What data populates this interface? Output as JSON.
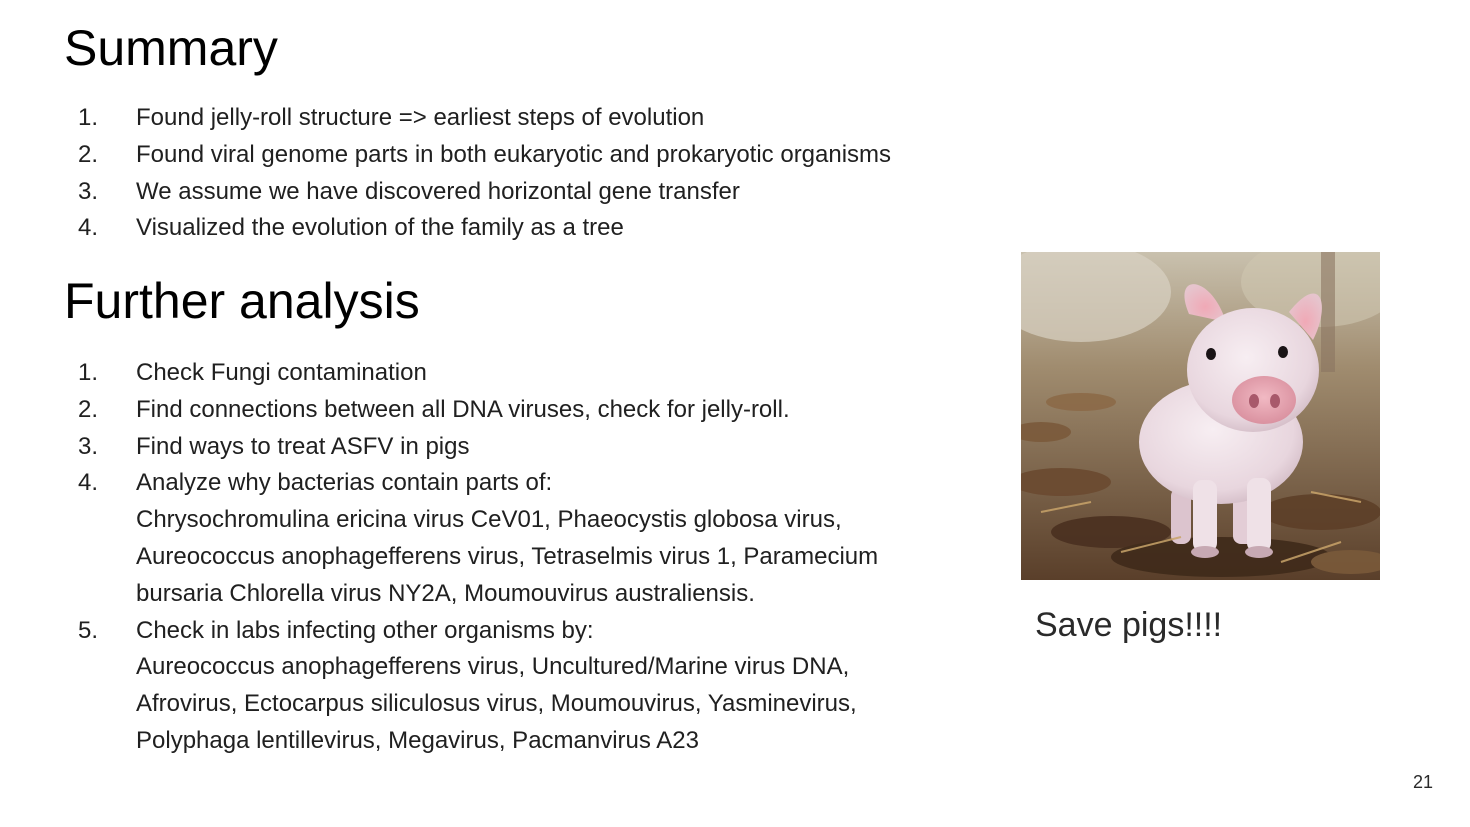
{
  "slide": {
    "summary_title": "Summary",
    "summary_items": [
      {
        "num": "1.",
        "text": "Found jelly-roll structure => earliest steps of evolution"
      },
      {
        "num": "2.",
        "text": "Found viral genome parts in both eukaryotic and prokaryotic organisms"
      },
      {
        "num": "3.",
        "text": "We assume we have discovered horizontal gene transfer"
      },
      {
        "num": "4.",
        "text": "Visualized the evolution of the family as a tree"
      }
    ],
    "further_title": "Further analysis",
    "further_items": [
      {
        "num": "1.",
        "text": "Check Fungi contamination"
      },
      {
        "num": "2.",
        "text": "Find connections between all DNA viruses, check for jelly-roll."
      },
      {
        "num": "3.",
        "text": "Find ways to treat ASFV in pigs"
      },
      {
        "num": "4.",
        "text": "Analyze why bacterias contain parts of:",
        "sub": [
          "Chrysochromulina ericina virus CeV01, Phaeocystis globosa virus,",
          "Aureococcus anophagefferens virus, Tetraselmis virus 1, Paramecium",
          "bursaria Chlorella virus NY2A, Moumouvirus australiensis."
        ]
      },
      {
        "num": "5.",
        "text": "Check in labs infecting other organisms by:",
        "sub": [
          "Aureococcus anophagefferens virus, Uncultured/Marine virus DNA,",
          "Afrovirus, Ectocarpus siliculosus virus, Moumouvirus, Yasminevirus,",
          "Polyphaga lentillevirus, Megavirus, Pacmanvirus A23"
        ]
      }
    ],
    "photo_icon": "piglet-photo",
    "caption": "Save pigs!!!!",
    "page_number": "21"
  }
}
